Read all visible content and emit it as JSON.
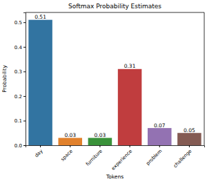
{
  "chart_data": {
    "type": "bar",
    "title": "Softmax Probability Estimates",
    "x_label": "Tokens",
    "y_label": "Probability",
    "categories": [
      "day",
      "space",
      "furniture",
      "experience",
      "problem",
      "challenge"
    ],
    "values": [
      0.51,
      0.03,
      0.03,
      0.31,
      0.07,
      0.05
    ],
    "colors": [
      "#3274a1",
      "#e1812c",
      "#3a923a",
      "#c03d3e",
      "#9372b2",
      "#845b53"
    ],
    "ylim": [
      0,
      0.54
    ],
    "yticks": [
      {
        "value": 0,
        "label": "0.0"
      },
      {
        "value": 0.1,
        "label": "0.1"
      },
      {
        "value": 0.2,
        "label": "0.2"
      },
      {
        "value": 0.3,
        "label": "0.3"
      },
      {
        "value": 0.4,
        "label": "0.4"
      },
      {
        "value": 0.5,
        "label": "0.5"
      }
    ],
    "grid": false,
    "data_labels": true
  }
}
